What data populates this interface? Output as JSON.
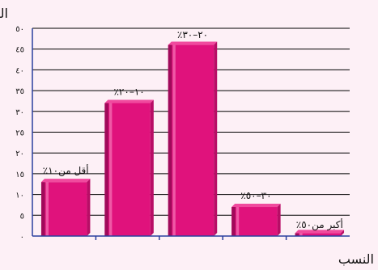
{
  "chart_data": {
    "type": "bar",
    "ylabel": "التكرارات",
    "xlabel": "النسب",
    "ylim": [
      0,
      50
    ],
    "yticks": [
      {
        "value": 0,
        "label": "٠"
      },
      {
        "value": 5,
        "label": "٥"
      },
      {
        "value": 10,
        "label": "١٠"
      },
      {
        "value": 15,
        "label": "١٥"
      },
      {
        "value": 20,
        "label": "٢٠"
      },
      {
        "value": 25,
        "label": "٢٥"
      },
      {
        "value": 30,
        "label": "٣٠"
      },
      {
        "value": 35,
        "label": "٣٥"
      },
      {
        "value": 40,
        "label": "٤٠"
      },
      {
        "value": 45,
        "label": "٤٥"
      },
      {
        "value": 50,
        "label": "٥٠"
      }
    ],
    "categories": [
      "أقل من١٠٪",
      "١٠–٢٠٪",
      "٢٠–٣٠٪",
      "٣٠–٥٠٪",
      "أكبر من٥٠٪"
    ],
    "values": [
      13,
      32,
      46,
      7,
      0.7
    ],
    "grid": true,
    "bar_color": "#e0127c",
    "grid_color": "#000000",
    "axis_color": "#2a3f9d"
  }
}
